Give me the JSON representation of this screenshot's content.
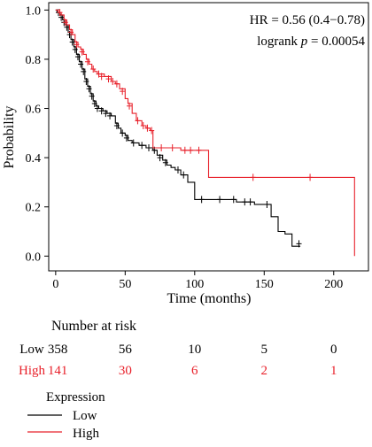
{
  "chart_data": {
    "type": "line",
    "xlabel": "Time (months)",
    "ylabel": "Probability",
    "xlim": [
      -5,
      225
    ],
    "ylim": [
      -0.06,
      1.03
    ],
    "xticks": [
      "0",
      "50",
      "100",
      "150",
      "200"
    ],
    "xtick_values": [
      0,
      50,
      100,
      150,
      200
    ],
    "yticks": [
      "0.0",
      "0.2",
      "0.4",
      "0.6",
      "0.8",
      "1.0"
    ],
    "ytick_values": [
      0.0,
      0.2,
      0.4,
      0.6,
      0.8,
      1.0
    ],
    "annotations": {
      "hr": "HR = 0.56 (0.4−0.78)",
      "logrank_prefix": "logrank",
      "p_symbol": "p",
      "p_value": "= 0.00054"
    },
    "series": [
      {
        "name": "Low",
        "color": "#000000",
        "steps": [
          [
            0,
            1.0
          ],
          [
            1,
            0.99
          ],
          [
            3,
            0.98
          ],
          [
            5,
            0.96
          ],
          [
            7,
            0.94
          ],
          [
            9,
            0.91
          ],
          [
            11,
            0.88
          ],
          [
            13,
            0.85
          ],
          [
            15,
            0.82
          ],
          [
            17,
            0.79
          ],
          [
            19,
            0.76
          ],
          [
            21,
            0.72
          ],
          [
            23,
            0.69
          ],
          [
            25,
            0.66
          ],
          [
            27,
            0.63
          ],
          [
            29,
            0.61
          ],
          [
            31,
            0.6
          ],
          [
            34,
            0.59
          ],
          [
            37,
            0.58
          ],
          [
            40,
            0.57
          ],
          [
            43,
            0.54
          ],
          [
            45,
            0.52
          ],
          [
            47,
            0.5
          ],
          [
            50,
            0.49
          ],
          [
            52,
            0.47
          ],
          [
            55,
            0.46
          ],
          [
            60,
            0.45
          ],
          [
            65,
            0.44
          ],
          [
            70,
            0.43
          ],
          [
            73,
            0.41
          ],
          [
            77,
            0.39
          ],
          [
            80,
            0.37
          ],
          [
            83,
            0.36
          ],
          [
            86,
            0.35
          ],
          [
            90,
            0.33
          ],
          [
            95,
            0.3
          ],
          [
            100,
            0.23
          ],
          [
            115,
            0.23
          ],
          [
            130,
            0.22
          ],
          [
            143,
            0.21
          ],
          [
            155,
            0.16
          ],
          [
            160,
            0.1
          ],
          [
            165,
            0.09
          ],
          [
            170,
            0.04
          ],
          [
            176,
            0.04
          ]
        ],
        "censor_points": [
          [
            2,
            0.99
          ],
          [
            4,
            0.97
          ],
          [
            6,
            0.95
          ],
          [
            8,
            0.93
          ],
          [
            10,
            0.9
          ],
          [
            12,
            0.87
          ],
          [
            14,
            0.84
          ],
          [
            16,
            0.81
          ],
          [
            18,
            0.78
          ],
          [
            20,
            0.75
          ],
          [
            22,
            0.71
          ],
          [
            24,
            0.68
          ],
          [
            26,
            0.65
          ],
          [
            28,
            0.62
          ],
          [
            30,
            0.6
          ],
          [
            33,
            0.59
          ],
          [
            36,
            0.58
          ],
          [
            39,
            0.57
          ],
          [
            44,
            0.53
          ],
          [
            48,
            0.5
          ],
          [
            51,
            0.48
          ],
          [
            56,
            0.46
          ],
          [
            62,
            0.45
          ],
          [
            67,
            0.44
          ],
          [
            71,
            0.43
          ],
          [
            75,
            0.4
          ],
          [
            79,
            0.38
          ],
          [
            88,
            0.35
          ],
          [
            92,
            0.33
          ],
          [
            105,
            0.23
          ],
          [
            118,
            0.23
          ],
          [
            128,
            0.23
          ],
          [
            136,
            0.22
          ],
          [
            140,
            0.22
          ],
          [
            152,
            0.21
          ],
          [
            175,
            0.05
          ]
        ]
      },
      {
        "name": "High",
        "color": "#e8202a",
        "steps": [
          [
            0,
            1.0
          ],
          [
            2,
            0.99
          ],
          [
            4,
            0.98
          ],
          [
            6,
            0.96
          ],
          [
            8,
            0.94
          ],
          [
            10,
            0.92
          ],
          [
            12,
            0.9
          ],
          [
            14,
            0.87
          ],
          [
            16,
            0.85
          ],
          [
            18,
            0.84
          ],
          [
            20,
            0.82
          ],
          [
            22,
            0.8
          ],
          [
            24,
            0.78
          ],
          [
            26,
            0.76
          ],
          [
            28,
            0.75
          ],
          [
            30,
            0.74
          ],
          [
            35,
            0.73
          ],
          [
            40,
            0.71
          ],
          [
            43,
            0.7
          ],
          [
            46,
            0.68
          ],
          [
            50,
            0.64
          ],
          [
            52,
            0.62
          ],
          [
            55,
            0.58
          ],
          [
            58,
            0.55
          ],
          [
            62,
            0.53
          ],
          [
            65,
            0.52
          ],
          [
            68,
            0.51
          ],
          [
            70,
            0.44
          ],
          [
            80,
            0.44
          ],
          [
            90,
            0.43
          ],
          [
            100,
            0.43
          ],
          [
            110,
            0.32
          ],
          [
            150,
            0.32
          ],
          [
            183,
            0.32
          ],
          [
            215,
            0.0
          ]
        ],
        "censor_points": [
          [
            3,
            0.99
          ],
          [
            7,
            0.95
          ],
          [
            11,
            0.91
          ],
          [
            15,
            0.86
          ],
          [
            19,
            0.83
          ],
          [
            23,
            0.79
          ],
          [
            27,
            0.76
          ],
          [
            31,
            0.74
          ],
          [
            33,
            0.73
          ],
          [
            38,
            0.72
          ],
          [
            41,
            0.71
          ],
          [
            44,
            0.7
          ],
          [
            48,
            0.67
          ],
          [
            53,
            0.61
          ],
          [
            59,
            0.55
          ],
          [
            63,
            0.53
          ],
          [
            66,
            0.52
          ],
          [
            69,
            0.51
          ],
          [
            76,
            0.44
          ],
          [
            84,
            0.44
          ],
          [
            93,
            0.43
          ],
          [
            97,
            0.43
          ],
          [
            103,
            0.43
          ],
          [
            142,
            0.32
          ],
          [
            183,
            0.32
          ]
        ]
      }
    ]
  },
  "risk_table": {
    "title": "Number at risk",
    "rows": [
      {
        "label": "Low",
        "values": [
          "358",
          "56",
          "10",
          "5",
          "0"
        ],
        "color": "#000000"
      },
      {
        "label": "High",
        "values": [
          "141",
          "30",
          "6",
          "2",
          "1"
        ],
        "color": "#e8202a"
      }
    ]
  },
  "legend": {
    "title": "Expression",
    "items": [
      {
        "label": "Low",
        "color": "#000000"
      },
      {
        "label": "High",
        "color": "#e8202a"
      }
    ]
  }
}
